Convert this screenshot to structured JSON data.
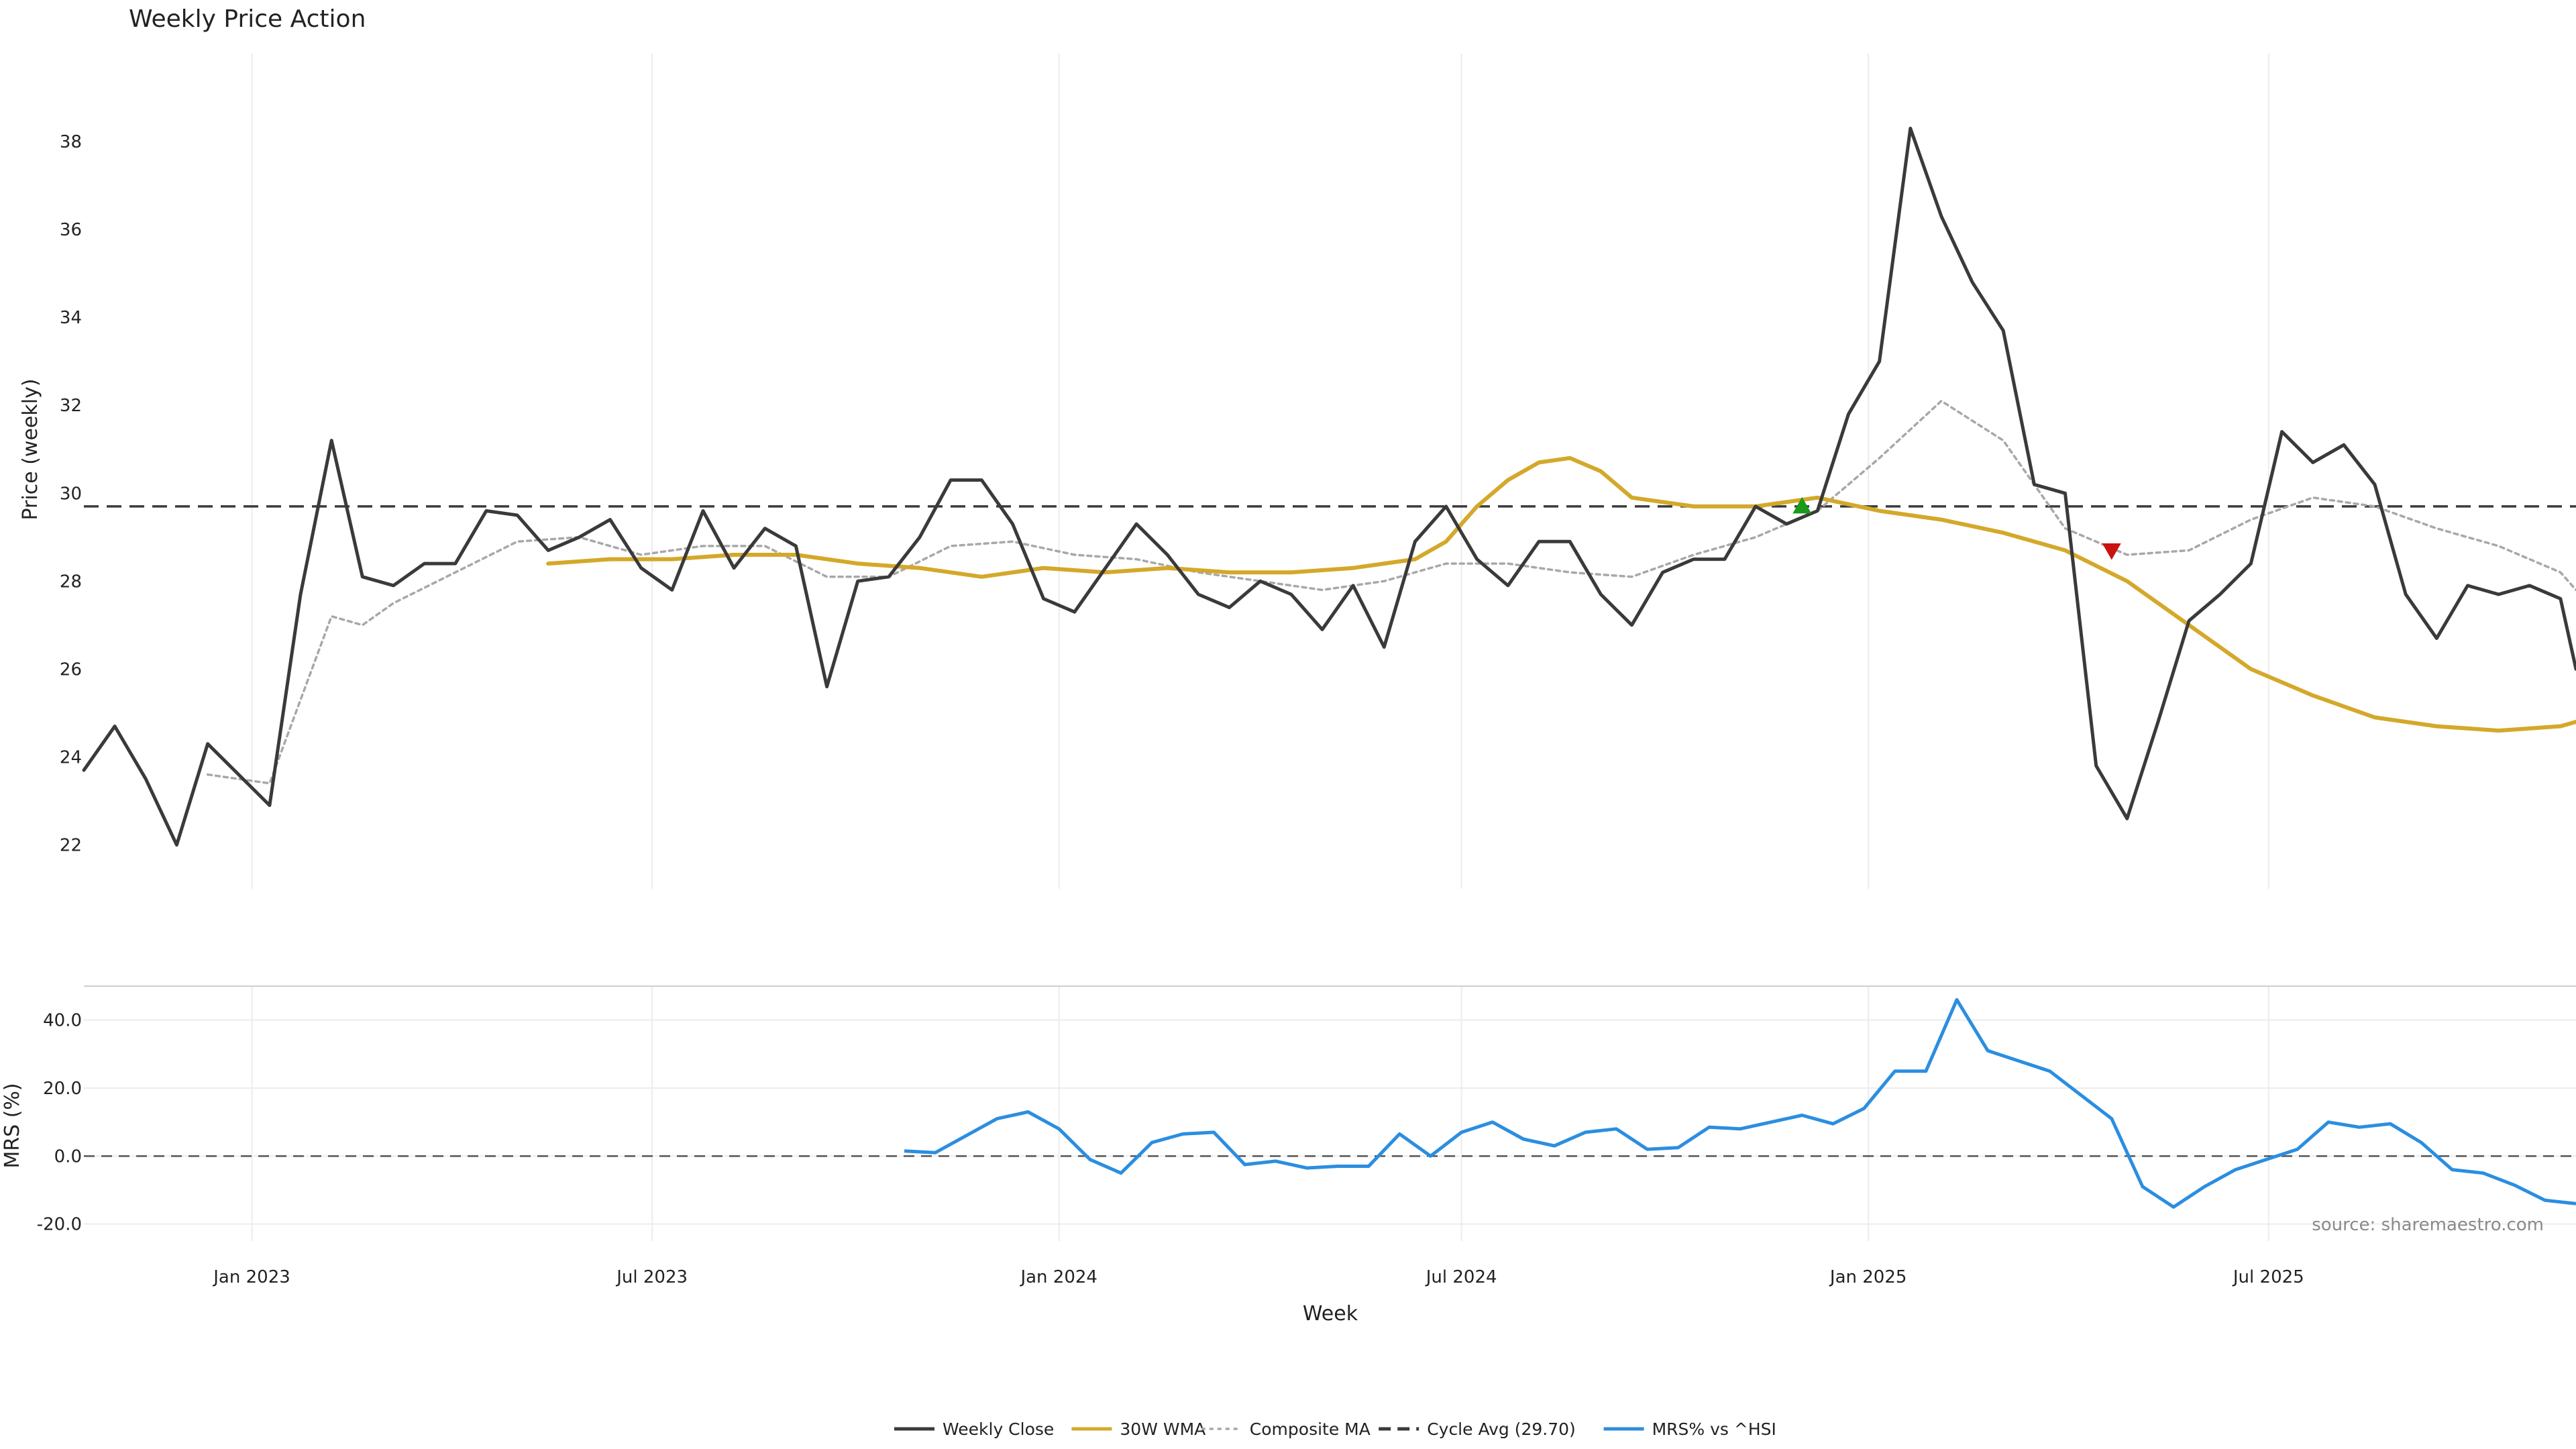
{
  "chart_data": [
    {
      "type": "line",
      "title": "Weekly Price Action",
      "ylabel": "Price (weekly)",
      "ylim": [
        21,
        40
      ],
      "yticks": [
        22,
        24,
        26,
        28,
        30,
        32,
        34,
        36,
        38
      ],
      "x_range": [
        "2022-10-17",
        "2025-11-17"
      ],
      "grid": "vertical",
      "reference_line": {
        "name": "Cycle Avg (29.70)",
        "value": 29.7
      },
      "series": [
        {
          "name": "Weekly Close",
          "color": "#3a3a3a",
          "points": [
            [
              "2022-10-17",
              23.7
            ],
            [
              "2022-10-31",
              24.7
            ],
            [
              "2022-11-14",
              23.5
            ],
            [
              "2022-11-28",
              22.0
            ],
            [
              "2022-12-12",
              24.3
            ],
            [
              "2022-12-26",
              23.6
            ],
            [
              "2023-01-09",
              22.9
            ],
            [
              "2023-01-23",
              27.7
            ],
            [
              "2023-02-06",
              31.2
            ],
            [
              "2023-02-20",
              28.1
            ],
            [
              "2023-03-06",
              27.9
            ],
            [
              "2023-03-20",
              28.4
            ],
            [
              "2023-04-03",
              28.4
            ],
            [
              "2023-04-17",
              29.6
            ],
            [
              "2023-05-01",
              29.5
            ],
            [
              "2023-05-15",
              28.7
            ],
            [
              "2023-05-29",
              29.0
            ],
            [
              "2023-06-12",
              29.4
            ],
            [
              "2023-06-26",
              28.3
            ],
            [
              "2023-07-10",
              27.8
            ],
            [
              "2023-07-24",
              29.6
            ],
            [
              "2023-08-07",
              28.3
            ],
            [
              "2023-08-21",
              29.2
            ],
            [
              "2023-09-04",
              28.8
            ],
            [
              "2023-09-18",
              25.6
            ],
            [
              "2023-10-02",
              28.0
            ],
            [
              "2023-10-16",
              28.1
            ],
            [
              "2023-10-30",
              29.0
            ],
            [
              "2023-11-13",
              30.3
            ],
            [
              "2023-11-27",
              30.3
            ],
            [
              "2023-12-11",
              29.3
            ],
            [
              "2023-12-25",
              27.6
            ],
            [
              "2024-01-08",
              27.3
            ],
            [
              "2024-01-22",
              28.3
            ],
            [
              "2024-02-05",
              29.3
            ],
            [
              "2024-02-19",
              28.6
            ],
            [
              "2024-03-04",
              27.7
            ],
            [
              "2024-03-18",
              27.4
            ],
            [
              "2024-04-01",
              28.0
            ],
            [
              "2024-04-15",
              27.7
            ],
            [
              "2024-04-29",
              26.9
            ],
            [
              "2024-05-13",
              27.9
            ],
            [
              "2024-05-27",
              26.5
            ],
            [
              "2024-06-10",
              28.9
            ],
            [
              "2024-06-24",
              29.7
            ],
            [
              "2024-07-08",
              28.5
            ],
            [
              "2024-07-22",
              27.9
            ],
            [
              "2024-08-05",
              28.9
            ],
            [
              "2024-08-19",
              28.9
            ],
            [
              "2024-09-02",
              27.7
            ],
            [
              "2024-09-16",
              27.0
            ],
            [
              "2024-09-30",
              28.2
            ],
            [
              "2024-10-14",
              28.5
            ],
            [
              "2024-10-28",
              28.5
            ],
            [
              "2024-11-11",
              29.7
            ],
            [
              "2024-11-25",
              29.3
            ],
            [
              "2024-12-09",
              29.6
            ],
            [
              "2024-12-23",
              31.8
            ],
            [
              "2025-01-06",
              33.0
            ],
            [
              "2025-01-20",
              38.3
            ],
            [
              "2025-02-03",
              36.3
            ],
            [
              "2025-02-17",
              34.8
            ],
            [
              "2025-03-03",
              33.7
            ],
            [
              "2025-03-17",
              30.2
            ],
            [
              "2025-03-31",
              30.0
            ],
            [
              "2025-04-14",
              23.8
            ],
            [
              "2025-04-28",
              22.6
            ],
            [
              "2025-05-12",
              24.8
            ],
            [
              "2025-05-26",
              27.1
            ],
            [
              "2025-06-09",
              27.7
            ],
            [
              "2025-06-23",
              28.4
            ],
            [
              "2025-07-07",
              31.4
            ],
            [
              "2025-07-21",
              30.7
            ],
            [
              "2025-08-04",
              31.1
            ],
            [
              "2025-08-18",
              30.2
            ],
            [
              "2025-09-01",
              27.7
            ],
            [
              "2025-09-15",
              26.7
            ],
            [
              "2025-09-29",
              27.9
            ],
            [
              "2025-10-13",
              27.7
            ],
            [
              "2025-10-27",
              27.9
            ],
            [
              "2025-11-10",
              27.6
            ],
            [
              "2025-11-17",
              26.0
            ]
          ]
        },
        {
          "name": "30W WMA",
          "color": "#d4a82a",
          "points": [
            [
              "2023-05-15",
              28.4
            ],
            [
              "2023-06-12",
              28.5
            ],
            [
              "2023-07-10",
              28.5
            ],
            [
              "2023-08-07",
              28.6
            ],
            [
              "2023-09-04",
              28.6
            ],
            [
              "2023-10-02",
              28.4
            ],
            [
              "2023-10-30",
              28.3
            ],
            [
              "2023-11-27",
              28.1
            ],
            [
              "2023-12-25",
              28.3
            ],
            [
              "2024-01-22",
              28.2
            ],
            [
              "2024-02-19",
              28.3
            ],
            [
              "2024-03-18",
              28.2
            ],
            [
              "2024-04-15",
              28.2
            ],
            [
              "2024-05-13",
              28.3
            ],
            [
              "2024-06-10",
              28.5
            ],
            [
              "2024-06-24",
              28.9
            ],
            [
              "2024-07-08",
              29.7
            ],
            [
              "2024-07-22",
              30.3
            ],
            [
              "2024-08-05",
              30.7
            ],
            [
              "2024-08-19",
              30.8
            ],
            [
              "2024-09-02",
              30.5
            ],
            [
              "2024-09-16",
              29.9
            ],
            [
              "2024-10-14",
              29.7
            ],
            [
              "2024-11-11",
              29.7
            ],
            [
              "2024-12-09",
              29.9
            ],
            [
              "2025-01-06",
              29.6
            ],
            [
              "2025-02-03",
              29.4
            ],
            [
              "2025-03-03",
              29.1
            ],
            [
              "2025-03-31",
              28.7
            ],
            [
              "2025-04-28",
              28.0
            ],
            [
              "2025-05-26",
              27.0
            ],
            [
              "2025-06-23",
              26.0
            ],
            [
              "2025-07-21",
              25.4
            ],
            [
              "2025-08-18",
              24.9
            ],
            [
              "2025-09-15",
              24.7
            ],
            [
              "2025-10-13",
              24.6
            ],
            [
              "2025-11-10",
              24.7
            ],
            [
              "2025-11-17",
              24.8
            ]
          ]
        },
        {
          "name": "Composite MA",
          "color": "#a8a8a8",
          "points": [
            [
              "2022-12-12",
              23.6
            ],
            [
              "2022-12-26",
              23.5
            ],
            [
              "2023-01-09",
              23.4
            ],
            [
              "2023-01-23",
              25.3
            ],
            [
              "2023-02-06",
              27.2
            ],
            [
              "2023-02-20",
              27.0
            ],
            [
              "2023-03-06",
              27.5
            ],
            [
              "2023-04-03",
              28.2
            ],
            [
              "2023-05-01",
              28.9
            ],
            [
              "2023-05-29",
              29.0
            ],
            [
              "2023-06-26",
              28.6
            ],
            [
              "2023-07-24",
              28.8
            ],
            [
              "2023-08-21",
              28.8
            ],
            [
              "2023-09-18",
              28.1
            ],
            [
              "2023-10-16",
              28.1
            ],
            [
              "2023-11-13",
              28.8
            ],
            [
              "2023-12-11",
              28.9
            ],
            [
              "2024-01-08",
              28.6
            ],
            [
              "2024-02-05",
              28.5
            ],
            [
              "2024-03-04",
              28.2
            ],
            [
              "2024-04-01",
              28.0
            ],
            [
              "2024-04-29",
              27.8
            ],
            [
              "2024-05-27",
              28.0
            ],
            [
              "2024-06-24",
              28.4
            ],
            [
              "2024-07-22",
              28.4
            ],
            [
              "2024-08-19",
              28.2
            ],
            [
              "2024-09-16",
              28.1
            ],
            [
              "2024-10-14",
              28.6
            ],
            [
              "2024-11-11",
              29.0
            ],
            [
              "2024-12-09",
              29.6
            ],
            [
              "2025-01-06",
              30.8
            ],
            [
              "2025-02-03",
              32.1
            ],
            [
              "2025-03-03",
              31.2
            ],
            [
              "2025-03-31",
              29.2
            ],
            [
              "2025-04-28",
              28.6
            ],
            [
              "2025-05-26",
              28.7
            ],
            [
              "2025-06-23",
              29.4
            ],
            [
              "2025-07-21",
              29.9
            ],
            [
              "2025-08-18",
              29.7
            ],
            [
              "2025-09-15",
              29.2
            ],
            [
              "2025-10-13",
              28.8
            ],
            [
              "2025-11-10",
              28.2
            ],
            [
              "2025-11-17",
              27.8
            ]
          ]
        }
      ],
      "signals": [
        {
          "date": "2024-12-02",
          "value": 29.7,
          "direction": "up",
          "color": "#1a9a1a"
        },
        {
          "date": "2025-04-21",
          "value": 28.7,
          "direction": "down",
          "color": "#cc1111"
        }
      ]
    },
    {
      "type": "line",
      "ylabel": "MRS (%)",
      "xlabel": "Week",
      "ylim": [
        -25,
        50
      ],
      "yticks": [
        -20.0,
        0.0,
        20.0,
        40.0
      ],
      "xticks": [
        "2023-01-01",
        "2023-07-01",
        "2024-01-01",
        "2024-07-01",
        "2025-01-01",
        "2025-07-01"
      ],
      "xtick_labels": [
        "Jan 2023",
        "Jul 2023",
        "Jan 2024",
        "Jul 2024",
        "Jan 2025",
        "Jul 2025"
      ],
      "reference_line": {
        "value": 0
      },
      "series": [
        {
          "name": "MRS% vs ^HSI",
          "color": "#2b8ee0",
          "points": [
            [
              "2023-10-23",
              1.5
            ],
            [
              "2023-11-06",
              1.0
            ],
            [
              "2023-11-20",
              6.0
            ],
            [
              "2023-12-04",
              11.0
            ],
            [
              "2023-12-18",
              13.0
            ],
            [
              "2024-01-01",
              8.0
            ],
            [
              "2024-01-15",
              -1.0
            ],
            [
              "2024-01-29",
              -5.0
            ],
            [
              "2024-02-12",
              4.0
            ],
            [
              "2024-02-26",
              6.5
            ],
            [
              "2024-03-11",
              7.0
            ],
            [
              "2024-03-25",
              -2.5
            ],
            [
              "2024-04-08",
              -1.5
            ],
            [
              "2024-04-22",
              -3.5
            ],
            [
              "2024-05-06",
              -3.0
            ],
            [
              "2024-05-20",
              -3.0
            ],
            [
              "2024-06-03",
              6.5
            ],
            [
              "2024-06-17",
              0.0
            ],
            [
              "2024-07-01",
              7.0
            ],
            [
              "2024-07-15",
              10.0
            ],
            [
              "2024-07-29",
              5.0
            ],
            [
              "2024-08-12",
              3.0
            ],
            [
              "2024-08-26",
              7.0
            ],
            [
              "2024-09-09",
              8.0
            ],
            [
              "2024-09-23",
              2.0
            ],
            [
              "2024-10-07",
              2.5
            ],
            [
              "2024-10-21",
              8.5
            ],
            [
              "2024-11-04",
              8.0
            ],
            [
              "2024-11-18",
              10.0
            ],
            [
              "2024-12-02",
              12.0
            ],
            [
              "2024-12-16",
              9.5
            ],
            [
              "2024-12-30",
              14.0
            ],
            [
              "2025-01-13",
              25.0
            ],
            [
              "2025-01-27",
              25.0
            ],
            [
              "2025-02-10",
              46.0
            ],
            [
              "2025-02-24",
              31.0
            ],
            [
              "2025-03-10",
              28.0
            ],
            [
              "2025-03-24",
              25.0
            ],
            [
              "2025-04-07",
              18.0
            ],
            [
              "2025-04-21",
              11.0
            ],
            [
              "2025-05-05",
              -9.0
            ],
            [
              "2025-05-19",
              -15.0
            ],
            [
              "2025-06-02",
              -9.0
            ],
            [
              "2025-06-16",
              -4.0
            ],
            [
              "2025-06-30",
              -1.0
            ],
            [
              "2025-07-14",
              2.0
            ],
            [
              "2025-07-28",
              10.0
            ],
            [
              "2025-08-11",
              8.5
            ],
            [
              "2025-08-25",
              9.5
            ],
            [
              "2025-09-08",
              4.0
            ],
            [
              "2025-09-22",
              -4.0
            ],
            [
              "2025-10-06",
              -5.0
            ],
            [
              "2025-10-20",
              -8.5
            ],
            [
              "2025-11-03",
              -13.0
            ],
            [
              "2025-11-17",
              -14.0
            ]
          ]
        }
      ]
    }
  ],
  "source_note": "source: sharemaestro.com",
  "legend": {
    "placement": "bottom-center",
    "items": [
      {
        "label": "Weekly Close",
        "color": "#3a3a3a",
        "style": "solid"
      },
      {
        "label": "30W WMA",
        "color": "#d4a82a",
        "style": "solid"
      },
      {
        "label": "Composite MA",
        "color": "#a8a8a8",
        "style": "dotted"
      },
      {
        "label": "Cycle Avg (29.70)",
        "color": "#3a3a3a",
        "style": "dashed"
      },
      {
        "label": "MRS% vs ^HSI",
        "color": "#2b8ee0",
        "style": "solid"
      }
    ]
  }
}
